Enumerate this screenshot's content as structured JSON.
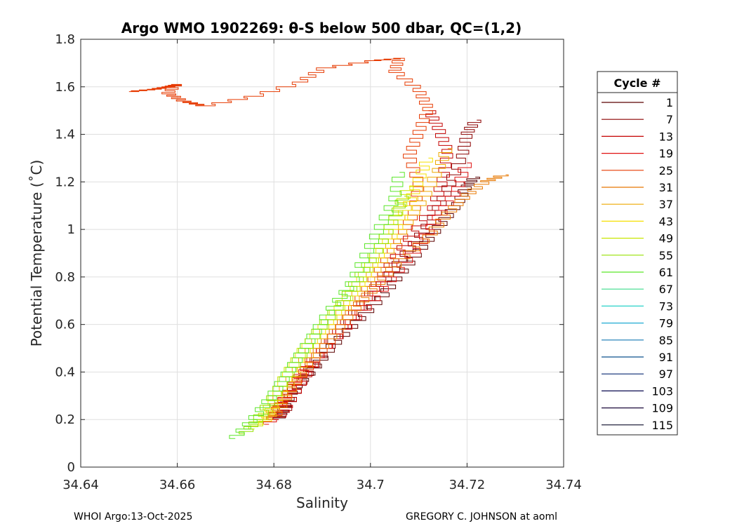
{
  "chart_data": {
    "type": "line",
    "title": "Argo WMO 1902269: θ-S below 500 dbar,  QC=(1,2)",
    "xlabel": "Salinity",
    "ylabel": "Potential Temperature (˚C)",
    "xlim": [
      34.64,
      34.74
    ],
    "ylim": [
      0,
      1.8
    ],
    "xticks": [
      34.64,
      34.66,
      34.68,
      34.7,
      34.72,
      34.74
    ],
    "xtick_labels": [
      "34.64",
      "34.66",
      "34.68",
      "34.7",
      "34.72",
      "34.74"
    ],
    "yticks": [
      0,
      0.2,
      0.4,
      0.6,
      0.8,
      1,
      1.2,
      1.4,
      1.6,
      1.8
    ],
    "ytick_labels": [
      "0",
      "0.2",
      "0.4",
      "0.6",
      "0.8",
      "1",
      "1.2",
      "1.4",
      "1.6",
      "1.8"
    ],
    "grid": true,
    "legend": {
      "title": "Cycle #",
      "placement": "outside-right",
      "entries": [
        {
          "label": "1",
          "color": "#5a0000"
        },
        {
          "label": "7",
          "color": "#8c0000"
        },
        {
          "label": "13",
          "color": "#c40000"
        },
        {
          "label": "19",
          "color": "#e01010"
        },
        {
          "label": "25",
          "color": "#e63a00"
        },
        {
          "label": "31",
          "color": "#e87800"
        },
        {
          "label": "37",
          "color": "#eea800"
        },
        {
          "label": "43",
          "color": "#f5e000"
        },
        {
          "label": "49",
          "color": "#c8e600"
        },
        {
          "label": "55",
          "color": "#96e000"
        },
        {
          "label": "61",
          "color": "#5ae628"
        },
        {
          "label": "67",
          "color": "#3cdc8c"
        },
        {
          "label": "73",
          "color": "#28d2c8"
        },
        {
          "label": "79",
          "color": "#1eaad2"
        },
        {
          "label": "85",
          "color": "#1478b4"
        },
        {
          "label": "91",
          "color": "#0a508c"
        },
        {
          "label": "97",
          "color": "#082870"
        },
        {
          "label": "103",
          "color": "#0a0a50"
        },
        {
          "label": "109",
          "color": "#1c0a3c"
        },
        {
          "label": "115",
          "color": "#0a0a28"
        }
      ]
    },
    "series": [
      {
        "name": "1",
        "color": "#5a0000",
        "points": [
          [
            34.7217,
            1.22
          ],
          [
            34.72,
            1.18
          ],
          [
            34.718,
            1.1
          ],
          [
            34.714,
            1.0
          ],
          [
            34.71,
            0.9
          ],
          [
            34.706,
            0.8
          ],
          [
            34.702,
            0.7
          ],
          [
            34.697,
            0.6
          ],
          [
            34.692,
            0.5
          ],
          [
            34.688,
            0.4
          ],
          [
            34.684,
            0.32
          ],
          [
            34.682,
            0.24
          ],
          [
            34.681,
            0.2
          ]
        ]
      },
      {
        "name": "7",
        "color": "#8c0000",
        "points": [
          [
            34.722,
            1.46
          ],
          [
            34.72,
            1.4
          ],
          [
            34.719,
            1.3
          ],
          [
            34.716,
            1.16
          ],
          [
            34.713,
            1.04
          ],
          [
            34.709,
            0.93
          ],
          [
            34.704,
            0.8
          ],
          [
            34.699,
            0.68
          ],
          [
            34.694,
            0.56
          ],
          [
            34.689,
            0.44
          ],
          [
            34.685,
            0.33
          ],
          [
            34.682,
            0.22
          ]
        ]
      },
      {
        "name": "13",
        "color": "#c40000",
        "points": [
          [
            34.712,
            1.5
          ],
          [
            34.714,
            1.42
          ],
          [
            34.716,
            1.32
          ],
          [
            34.715,
            1.2
          ],
          [
            34.713,
            1.08
          ],
          [
            34.708,
            0.95
          ],
          [
            34.704,
            0.84
          ],
          [
            34.7,
            0.72
          ],
          [
            34.695,
            0.6
          ],
          [
            34.69,
            0.48
          ],
          [
            34.686,
            0.36
          ],
          [
            34.683,
            0.26
          ],
          [
            34.681,
            0.2
          ]
        ]
      },
      {
        "name": "19",
        "color": "#e01010",
        "points": [
          [
            34.72,
            1.28
          ],
          [
            34.718,
            1.16
          ],
          [
            34.714,
            1.04
          ],
          [
            34.71,
            0.92
          ],
          [
            34.705,
            0.8
          ],
          [
            34.7,
            0.68
          ],
          [
            34.694,
            0.56
          ],
          [
            34.688,
            0.44
          ],
          [
            34.684,
            0.34
          ],
          [
            34.681,
            0.24
          ],
          [
            34.679,
            0.18
          ]
        ]
      },
      {
        "name": "25",
        "color": "#e63a00",
        "points": [
          [
            34.65,
            1.58
          ],
          [
            34.655,
            1.59
          ],
          [
            34.658,
            1.6
          ],
          [
            34.66,
            1.61
          ],
          [
            34.658,
            1.57
          ],
          [
            34.661,
            1.54
          ],
          [
            34.665,
            1.52
          ],
          [
            34.675,
            1.56
          ],
          [
            34.685,
            1.62
          ],
          [
            34.69,
            1.68
          ],
          [
            34.7,
            1.71
          ],
          [
            34.706,
            1.72
          ],
          [
            34.705,
            1.66
          ],
          [
            34.71,
            1.58
          ],
          [
            34.712,
            1.5
          ],
          [
            34.71,
            1.4
          ],
          [
            34.708,
            1.3
          ],
          [
            34.71,
            1.18
          ],
          [
            34.709,
            1.06
          ],
          [
            34.706,
            0.94
          ],
          [
            34.702,
            0.82
          ],
          [
            34.698,
            0.7
          ],
          [
            34.694,
            0.58
          ],
          [
            34.689,
            0.46
          ],
          [
            34.685,
            0.36
          ],
          [
            34.682,
            0.28
          ],
          [
            34.68,
            0.22
          ]
        ]
      },
      {
        "name": "31",
        "color": "#e87800",
        "points": [
          [
            34.728,
            1.23
          ],
          [
            34.724,
            1.2
          ],
          [
            34.72,
            1.14
          ],
          [
            34.716,
            1.06
          ],
          [
            34.712,
            0.96
          ],
          [
            34.706,
            0.86
          ],
          [
            34.701,
            0.75
          ],
          [
            34.696,
            0.64
          ],
          [
            34.691,
            0.52
          ],
          [
            34.686,
            0.4
          ],
          [
            34.683,
            0.3
          ],
          [
            34.68,
            0.2
          ]
        ]
      },
      {
        "name": "37",
        "color": "#eea800",
        "points": [
          [
            34.716,
            1.34
          ],
          [
            34.714,
            1.24
          ],
          [
            34.711,
            1.12
          ],
          [
            34.707,
            1.0
          ],
          [
            34.703,
            0.88
          ],
          [
            34.699,
            0.76
          ],
          [
            34.694,
            0.64
          ],
          [
            34.689,
            0.52
          ],
          [
            34.685,
            0.4
          ],
          [
            34.681,
            0.28
          ],
          [
            34.679,
            0.2
          ]
        ]
      },
      {
        "name": "43",
        "color": "#f5e000",
        "points": [
          [
            34.712,
            1.3
          ],
          [
            34.71,
            1.2
          ],
          [
            34.708,
            1.1
          ],
          [
            34.705,
            0.98
          ],
          [
            34.701,
            0.86
          ],
          [
            34.697,
            0.74
          ],
          [
            34.692,
            0.62
          ],
          [
            34.687,
            0.5
          ],
          [
            34.683,
            0.38
          ],
          [
            34.68,
            0.26
          ],
          [
            34.678,
            0.18
          ]
        ]
      },
      {
        "name": "49",
        "color": "#c8e600",
        "points": [
          [
            34.708,
            1.18
          ],
          [
            34.706,
            1.08
          ],
          [
            34.703,
            0.96
          ],
          [
            34.7,
            0.84
          ],
          [
            34.696,
            0.72
          ],
          [
            34.691,
            0.6
          ],
          [
            34.686,
            0.48
          ],
          [
            34.682,
            0.36
          ],
          [
            34.679,
            0.24
          ],
          [
            34.676,
            0.16
          ]
        ]
      },
      {
        "name": "55",
        "color": "#96e000",
        "points": [
          [
            34.707,
            1.14
          ],
          [
            34.705,
            1.04
          ],
          [
            34.702,
            0.92
          ],
          [
            34.698,
            0.8
          ],
          [
            34.694,
            0.68
          ],
          [
            34.689,
            0.56
          ],
          [
            34.685,
            0.44
          ],
          [
            34.681,
            0.32
          ],
          [
            34.677,
            0.2
          ],
          [
            34.674,
            0.14
          ]
        ]
      },
      {
        "name": "61",
        "color": "#5ae628",
        "points": [
          [
            34.706,
            1.24
          ],
          [
            34.705,
            1.12
          ],
          [
            34.702,
            1.0
          ],
          [
            34.699,
            0.88
          ],
          [
            34.696,
            0.76
          ],
          [
            34.692,
            0.66
          ],
          [
            34.688,
            0.54
          ],
          [
            34.684,
            0.42
          ],
          [
            34.68,
            0.3
          ],
          [
            34.676,
            0.2
          ],
          [
            34.672,
            0.12
          ]
        ]
      }
    ]
  },
  "footer": {
    "left": "WHOI Argo:13-Oct-2025",
    "right": "GREGORY C. JOHNSON at aoml"
  }
}
